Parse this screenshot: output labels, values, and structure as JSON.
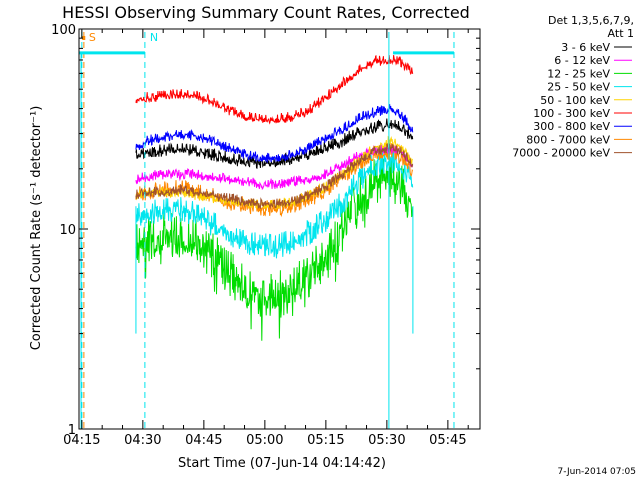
{
  "chart_data": {
    "type": "line",
    "title": "HESSI Observing Summary Count Rates, Corrected",
    "xlabel": "Start Time (07-Jun-14 04:14:42)",
    "ylabel": "Corrected Count Rate (s⁻¹ detector⁻¹)",
    "yscale": "log",
    "ylim": [
      1,
      100
    ],
    "y_ticks": [
      {
        "label": "1",
        "value": 1
      },
      {
        "label": "10",
        "value": 10
      },
      {
        "label": "100",
        "value": 100
      }
    ],
    "xlim_minutes": [
      -0.7,
      97.9
    ],
    "x_ticks": [
      {
        "label": "04:15",
        "minute": 0
      },
      {
        "label": "04:30",
        "minute": 15
      },
      {
        "label": "04:45",
        "minute": 30
      },
      {
        "label": "05:00",
        "minute": 45
      },
      {
        "label": "05:15",
        "minute": 60
      },
      {
        "label": "05:30",
        "minute": 75
      },
      {
        "label": "05:45",
        "minute": 90
      }
    ],
    "legend_header": [
      "Det 1,3,5,6,7,9,",
      "Att 1"
    ],
    "legend_position": "right",
    "data_start_minute": 13.3,
    "data_end_minute": 81.4,
    "time_minutes": [
      13.3,
      16,
      20,
      24,
      28,
      32,
      36,
      40,
      44,
      48,
      52,
      56,
      60,
      64,
      68,
      72,
      76,
      78,
      80,
      81.4
    ],
    "series": [
      {
        "name": "3 - 6 keV",
        "color": "#000000",
        "noise": 0.06,
        "values": [
          24,
          25,
          25,
          26,
          25,
          24,
          23,
          22,
          22,
          22,
          23,
          24,
          26,
          28,
          31,
          33,
          34,
          33,
          31,
          29
        ]
      },
      {
        "name": "6 - 12 keV",
        "color": "#ff00ff",
        "noise": 0.05,
        "values": [
          18,
          18.5,
          19,
          19,
          19,
          18.5,
          18,
          17.5,
          17,
          17,
          17.5,
          18,
          19,
          21,
          23.5,
          25,
          25.5,
          25,
          23,
          21
        ]
      },
      {
        "name": "12 - 25 keV",
        "color": "#00dd00",
        "noise": 0.22,
        "values": [
          9,
          9.5,
          10,
          10,
          9.5,
          8,
          6.5,
          5.5,
          5,
          5,
          5.5,
          6.5,
          8,
          11,
          15,
          19,
          20,
          18,
          16,
          14
        ]
      },
      {
        "name": "25 - 50 keV",
        "color": "#00e5ee",
        "noise": 0.12,
        "values": [
          12,
          12.5,
          13,
          13,
          12.5,
          11,
          10,
          9,
          8.5,
          8.5,
          9,
          10,
          11.5,
          14,
          18,
          22,
          23,
          22,
          19,
          17
        ]
      },
      {
        "name": "50 - 100 keV",
        "color": "#ffd400",
        "noise": 0.05,
        "values": [
          15,
          15.5,
          15.5,
          15.5,
          15,
          14.5,
          14,
          13.5,
          13.5,
          13.5,
          14,
          15,
          16.5,
          19,
          22,
          26,
          28,
          27,
          24,
          22
        ]
      },
      {
        "name": "100 - 300 keV",
        "color": "#ff0000",
        "noise": 0.05,
        "values": [
          45,
          46,
          47,
          48,
          47,
          44,
          40,
          37,
          36,
          36,
          37,
          40,
          46,
          54,
          63,
          70,
          71,
          70,
          66,
          60
        ]
      },
      {
        "name": "300 - 800 keV",
        "color": "#0000ff",
        "noise": 0.05,
        "values": [
          26,
          28,
          29,
          30,
          29.5,
          28,
          26,
          24,
          23,
          23,
          24,
          26,
          29,
          32,
          36,
          39,
          40,
          38,
          35,
          31
        ]
      },
      {
        "name": "800 - 7000 keV",
        "color": "#ff8800",
        "noise": 0.08,
        "values": [
          15,
          15.5,
          16,
          16.5,
          16,
          15,
          14,
          13.5,
          13,
          13,
          13.5,
          14.5,
          16,
          18.5,
          21.5,
          24,
          25,
          24,
          22,
          20
        ]
      },
      {
        "name": "7000 - 20000 keV",
        "color": "#a0522d",
        "noise": 0.05,
        "values": [
          15,
          15.5,
          15.5,
          16,
          15.5,
          15,
          14.5,
          14,
          13.5,
          13.5,
          14,
          15,
          16.5,
          19,
          22,
          25,
          26,
          25,
          23,
          21
        ]
      }
    ],
    "markers": [
      {
        "label": "S",
        "minute": 0.5,
        "color": "#ff8800"
      },
      {
        "label": "N",
        "minute": 15.5,
        "color": "#00e5ee"
      }
    ],
    "other_dashed_lines": [
      {
        "minute": 0,
        "color": "#00e5ee"
      },
      {
        "minute": 91.5,
        "color": "#00e5ee"
      }
    ],
    "solid_vertical_lines": [
      {
        "minute": 75.5,
        "color": "#00e5ee"
      }
    ],
    "cyan_segments": [
      {
        "from_minute": -0.7,
        "to_minute": 15.5,
        "value": 76
      },
      {
        "from_minute": 76.5,
        "to_minute": 91.5,
        "value": 76
      }
    ],
    "cyan_drop_lines": [
      13.3,
      81.4
    ],
    "footer_date": "7-Jun-2014 07:05"
  }
}
